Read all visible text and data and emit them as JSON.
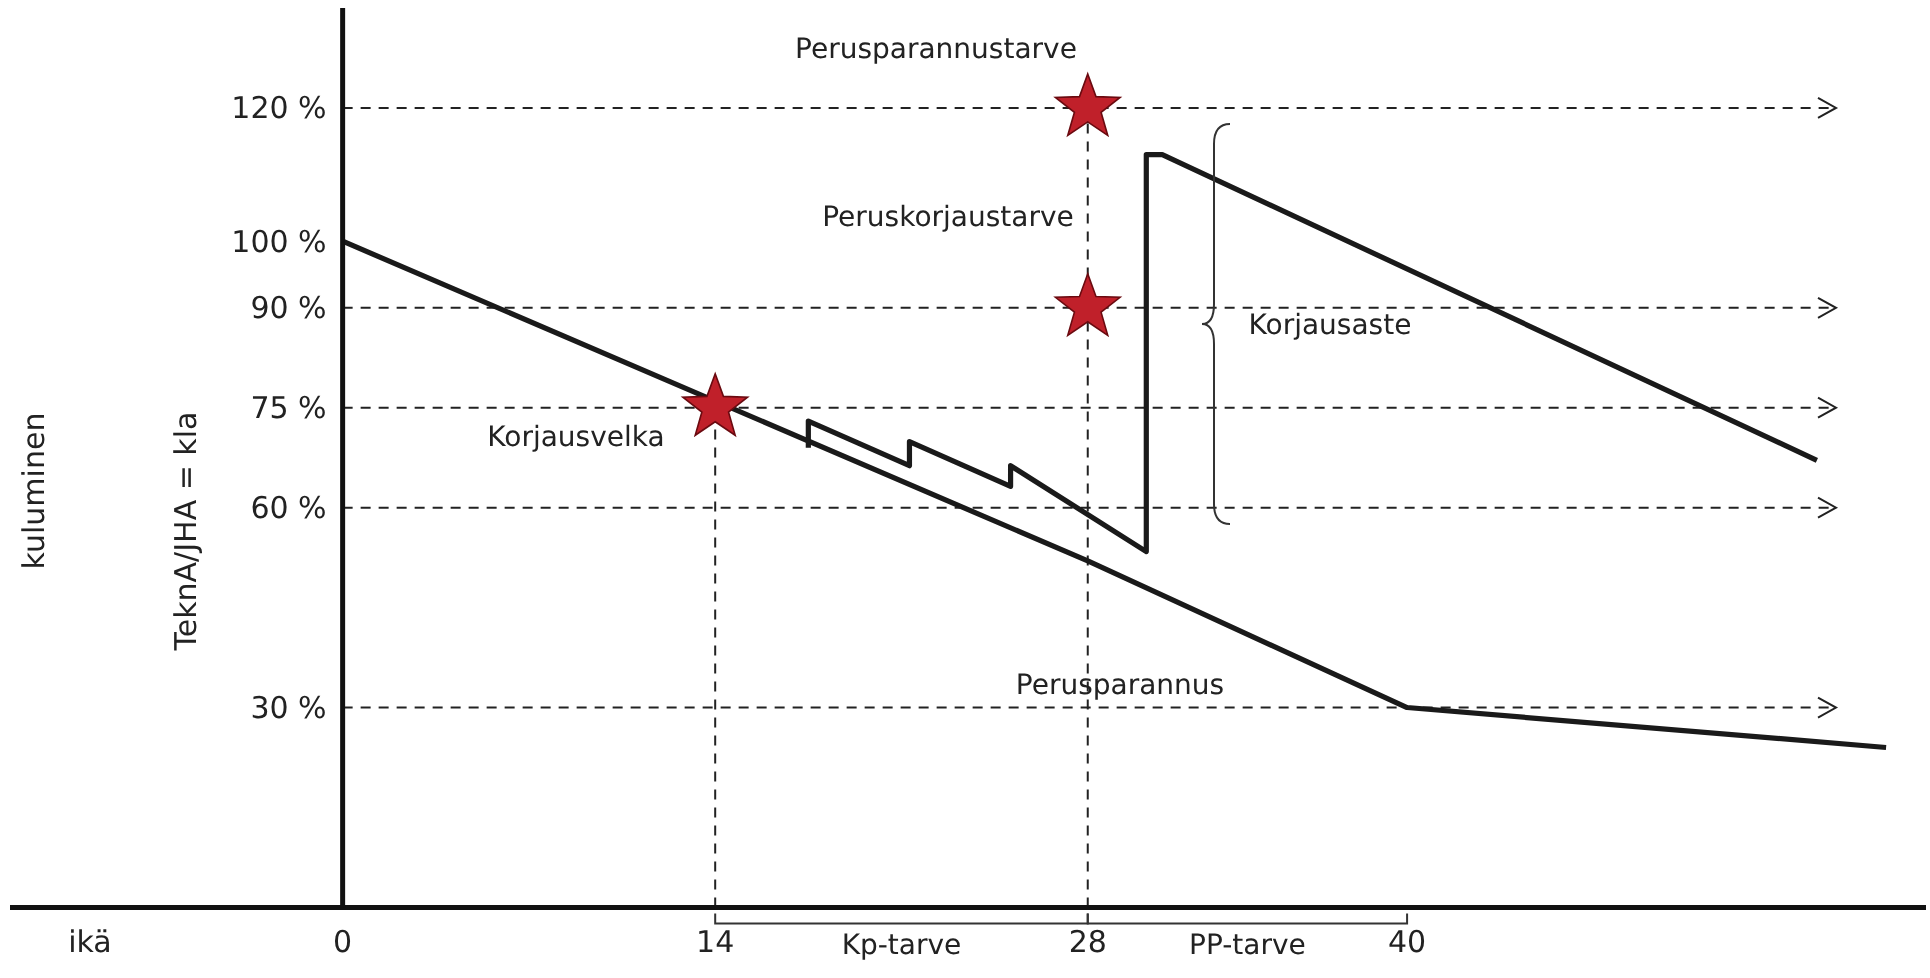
{
  "chart_data": {
    "type": "line",
    "xlabel": "ikä",
    "ylabel": "TeknA/JHA = kla",
    "xlim": [
      -12.5,
      59.5
    ],
    "ylim": [
      -10,
      135
    ],
    "xticks": [
      0,
      14,
      28,
      40
    ],
    "yticks": [
      {
        "value": 120,
        "label": "120 %"
      },
      {
        "value": 100,
        "label": "100 %"
      },
      {
        "value": 90,
        "label": "90 %"
      },
      {
        "value": 75,
        "label": "75 %"
      },
      {
        "value": 60,
        "label": "60 %"
      },
      {
        "value": 30,
        "label": "30 %"
      }
    ],
    "grid": false,
    "line_style": "solid",
    "marker": "none",
    "series": [
      {
        "color": "#1a1a1a",
        "x": [
          0,
          28,
          40,
          58
        ],
        "values": [
          100,
          52,
          30,
          24
        ]
      },
      {
        "color": "#1a1a1a",
        "x": [
          17.5,
          17.5,
          21.3,
          21.3,
          25.1,
          25.1,
          30.2,
          30.2,
          30.8,
          55.4
        ],
        "values": [
          69,
          73,
          66.3,
          69.9,
          63.2,
          66.3,
          53.4,
          113,
          113,
          67.1
        ]
      },
      {
        "type": "scatter",
        "marker": "star",
        "color": "#c0202a",
        "x": [
          14,
          28,
          28
        ],
        "values": [
          75,
          90,
          120
        ]
      }
    ],
    "ref_lines": [
      {
        "axis": "y",
        "value": 120,
        "line_style": "dashed"
      },
      {
        "axis": "y",
        "value": 90,
        "line_style": "dashed"
      },
      {
        "axis": "y",
        "value": 75,
        "line_style": "dashed"
      },
      {
        "axis": "y",
        "value": 60,
        "line_style": "dashed"
      },
      {
        "axis": "y",
        "value": 30,
        "line_style": "dashed"
      },
      {
        "axis": "x",
        "value": 14,
        "line_style": "dashed"
      },
      {
        "axis": "x",
        "value": 28,
        "line_style": "dashed"
      }
    ],
    "annotations": [
      "kuluminen",
      "Perusparannustarve",
      "Peruskorjaustarve",
      "Korjausvelka",
      "Korjausaste",
      "Perusparannus",
      "Kp-tarve",
      "PP-tarve"
    ]
  }
}
